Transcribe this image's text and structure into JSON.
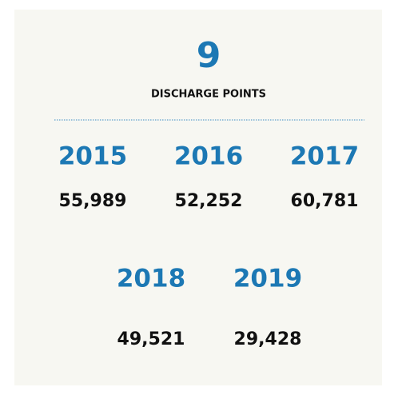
{
  "headline": {
    "number": "9",
    "label": "DISCHARGE POINTS"
  },
  "stats": [
    {
      "year": "2015",
      "value": "55,989"
    },
    {
      "year": "2016",
      "value": "52,252"
    },
    {
      "year": "2017",
      "value": "60,781"
    },
    {
      "year": "2018",
      "value": "49,521"
    },
    {
      "year": "2019",
      "value": "29,428"
    }
  ]
}
